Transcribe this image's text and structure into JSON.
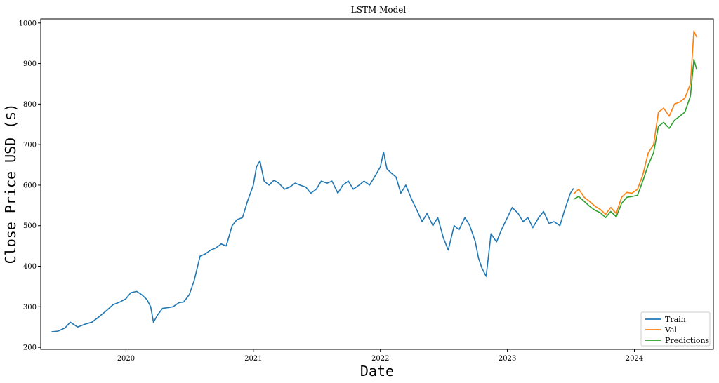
{
  "chart_data": {
    "type": "line",
    "title": "LSTM Model",
    "xlabel": "Date",
    "ylabel": "Close Price USD ($)",
    "xlim": [
      "2019-05-01",
      "2024-08-15"
    ],
    "ylim": [
      195,
      1010
    ],
    "x_ticks": [
      "2020",
      "2021",
      "2022",
      "2023",
      "2024"
    ],
    "y_ticks": [
      200,
      300,
      400,
      500,
      600,
      700,
      800,
      900,
      1000
    ],
    "grid": false,
    "legend_position": "lower right",
    "series": [
      {
        "name": "Train",
        "color": "#1f77b4",
        "x": [
          "2019-06-01",
          "2019-06-20",
          "2019-07-10",
          "2019-07-25",
          "2019-08-15",
          "2019-09-05",
          "2019-09-25",
          "2019-10-15",
          "2019-11-05",
          "2019-11-25",
          "2019-12-15",
          "2020-01-01",
          "2020-01-15",
          "2020-02-01",
          "2020-02-15",
          "2020-03-01",
          "2020-03-12",
          "2020-03-20",
          "2020-04-01",
          "2020-04-15",
          "2020-05-01",
          "2020-05-15",
          "2020-06-01",
          "2020-06-15",
          "2020-07-01",
          "2020-07-15",
          "2020-08-01",
          "2020-08-15",
          "2020-09-01",
          "2020-09-15",
          "2020-10-01",
          "2020-10-15",
          "2020-11-01",
          "2020-11-15",
          "2020-12-01",
          "2020-12-15",
          "2021-01-01",
          "2021-01-10",
          "2021-01-20",
          "2021-02-01",
          "2021-02-15",
          "2021-03-01",
          "2021-03-15",
          "2021-04-01",
          "2021-04-15",
          "2021-05-01",
          "2021-05-15",
          "2021-06-01",
          "2021-06-15",
          "2021-07-01",
          "2021-07-15",
          "2021-08-01",
          "2021-08-15",
          "2021-09-01",
          "2021-09-15",
          "2021-10-01",
          "2021-10-15",
          "2021-11-01",
          "2021-11-15",
          "2021-12-01",
          "2021-12-15",
          "2022-01-01",
          "2022-01-10",
          "2022-01-20",
          "2022-02-01",
          "2022-02-15",
          "2022-03-01",
          "2022-03-15",
          "2022-04-01",
          "2022-04-15",
          "2022-05-01",
          "2022-05-15",
          "2022-06-01",
          "2022-06-15",
          "2022-07-01",
          "2022-07-15",
          "2022-08-01",
          "2022-08-15",
          "2022-09-01",
          "2022-09-15",
          "2022-10-01",
          "2022-10-10",
          "2022-10-20",
          "2022-11-01",
          "2022-11-15",
          "2022-12-01",
          "2022-12-15",
          "2023-01-01",
          "2023-01-15",
          "2023-02-01",
          "2023-02-15",
          "2023-03-01",
          "2023-03-15",
          "2023-04-01",
          "2023-04-15",
          "2023-05-01",
          "2023-05-15",
          "2023-06-01",
          "2023-06-15",
          "2023-07-01",
          "2023-07-10"
        ],
        "values": [
          238,
          240,
          248,
          262,
          250,
          257,
          262,
          275,
          290,
          305,
          312,
          320,
          335,
          338,
          330,
          318,
          300,
          262,
          280,
          296,
          298,
          300,
          310,
          312,
          330,
          365,
          425,
          430,
          440,
          445,
          455,
          450,
          500,
          515,
          520,
          560,
          600,
          645,
          660,
          610,
          600,
          612,
          605,
          590,
          595,
          605,
          600,
          595,
          580,
          590,
          610,
          605,
          610,
          580,
          600,
          610,
          590,
          600,
          610,
          600,
          620,
          645,
          682,
          640,
          630,
          620,
          580,
          600,
          565,
          540,
          510,
          530,
          500,
          520,
          470,
          440,
          500,
          490,
          520,
          500,
          460,
          420,
          395,
          375,
          480,
          460,
          490,
          520,
          545,
          530,
          510,
          520,
          495,
          520,
          535,
          505,
          510,
          500,
          540,
          580,
          592
        ]
      },
      {
        "name": "Val",
        "color": "#ff7f0e",
        "x": [
          "2023-07-10",
          "2023-07-25",
          "2023-08-10",
          "2023-08-25",
          "2023-09-10",
          "2023-09-25",
          "2023-10-10",
          "2023-10-25",
          "2023-11-10",
          "2023-11-25",
          "2023-12-10",
          "2023-12-25",
          "2024-01-10",
          "2024-01-25",
          "2024-02-10",
          "2024-02-25",
          "2024-03-10",
          "2024-03-25",
          "2024-04-10",
          "2024-04-25",
          "2024-05-10",
          "2024-05-25",
          "2024-06-10",
          "2024-06-20",
          "2024-06-28"
        ],
        "values": [
          578,
          590,
          570,
          560,
          548,
          540,
          528,
          545,
          530,
          570,
          582,
          580,
          590,
          625,
          680,
          700,
          780,
          790,
          770,
          800,
          805,
          815,
          850,
          980,
          965
        ]
      },
      {
        "name": "Predictions",
        "color": "#2ca02c",
        "x": [
          "2023-07-10",
          "2023-07-25",
          "2023-08-10",
          "2023-08-25",
          "2023-09-10",
          "2023-09-25",
          "2023-10-10",
          "2023-10-25",
          "2023-11-10",
          "2023-11-25",
          "2023-12-10",
          "2023-12-25",
          "2024-01-10",
          "2024-01-25",
          "2024-02-10",
          "2024-02-25",
          "2024-03-10",
          "2024-03-25",
          "2024-04-10",
          "2024-04-25",
          "2024-05-10",
          "2024-05-25",
          "2024-06-10",
          "2024-06-20",
          "2024-06-28"
        ],
        "values": [
          565,
          572,
          560,
          548,
          538,
          532,
          520,
          535,
          522,
          555,
          570,
          572,
          575,
          610,
          650,
          680,
          745,
          755,
          740,
          760,
          770,
          780,
          820,
          910,
          885
        ]
      }
    ]
  }
}
